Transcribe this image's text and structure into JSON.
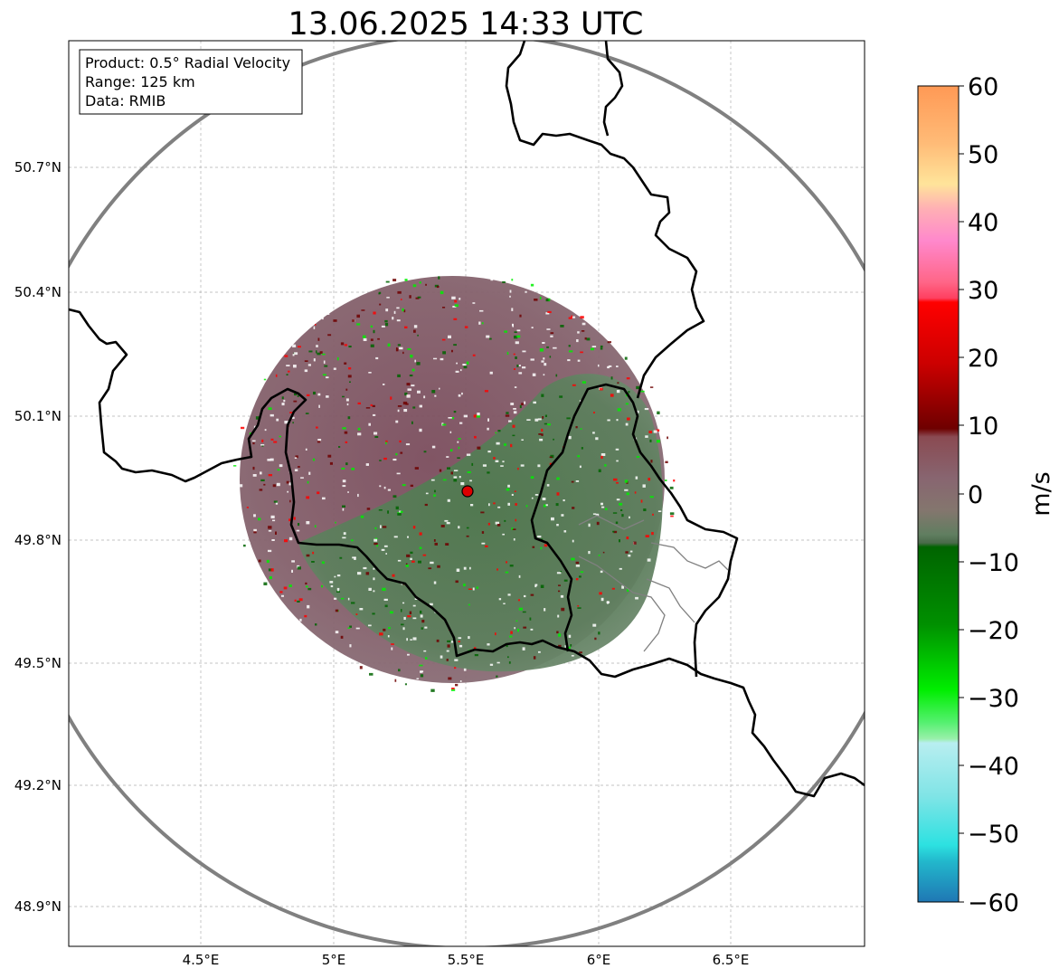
{
  "title": "13.06.2025 14:33 UTC",
  "info_box": {
    "product": "Product: 0.5° Radial Velocity",
    "range": "Range: 125 km",
    "data": "Data: RMIB"
  },
  "axes": {
    "lon_ticks": [
      "4.5°E",
      "5°E",
      "5.5°E",
      "6°E",
      "6.5°E"
    ],
    "lat_ticks": [
      "50.7°N",
      "50.4°N",
      "50.1°N",
      "49.8°N",
      "49.5°N",
      "49.2°N",
      "48.9°N"
    ],
    "lon_range": [
      4.0,
      7.0
    ],
    "lat_range": [
      48.8,
      51.0
    ]
  },
  "radar_site": {
    "lon": 5.505,
    "lat": 49.915,
    "color": "#dd0000"
  },
  "colorbar": {
    "label": "m/s",
    "ticks": [
      "60",
      "50",
      "40",
      "30",
      "20",
      "10",
      "0",
      "−10",
      "−20",
      "−30",
      "−40",
      "−50",
      "−60"
    ],
    "colors": {
      "approaching_strong": "#1f77b4",
      "approaching_mid": "#2de1e1",
      "approaching_light": "#b2eef0",
      "approaching_green": "#00ee00",
      "approaching_dark": "#006400",
      "near_zero_green": "#5e7a5e",
      "near_zero_purple": "#7d5060",
      "receding_dark": "#6e0000",
      "receding_red": "#ff0000",
      "receding_pink": "#ff88cc",
      "receding_orange": "#ff9955"
    }
  }
}
